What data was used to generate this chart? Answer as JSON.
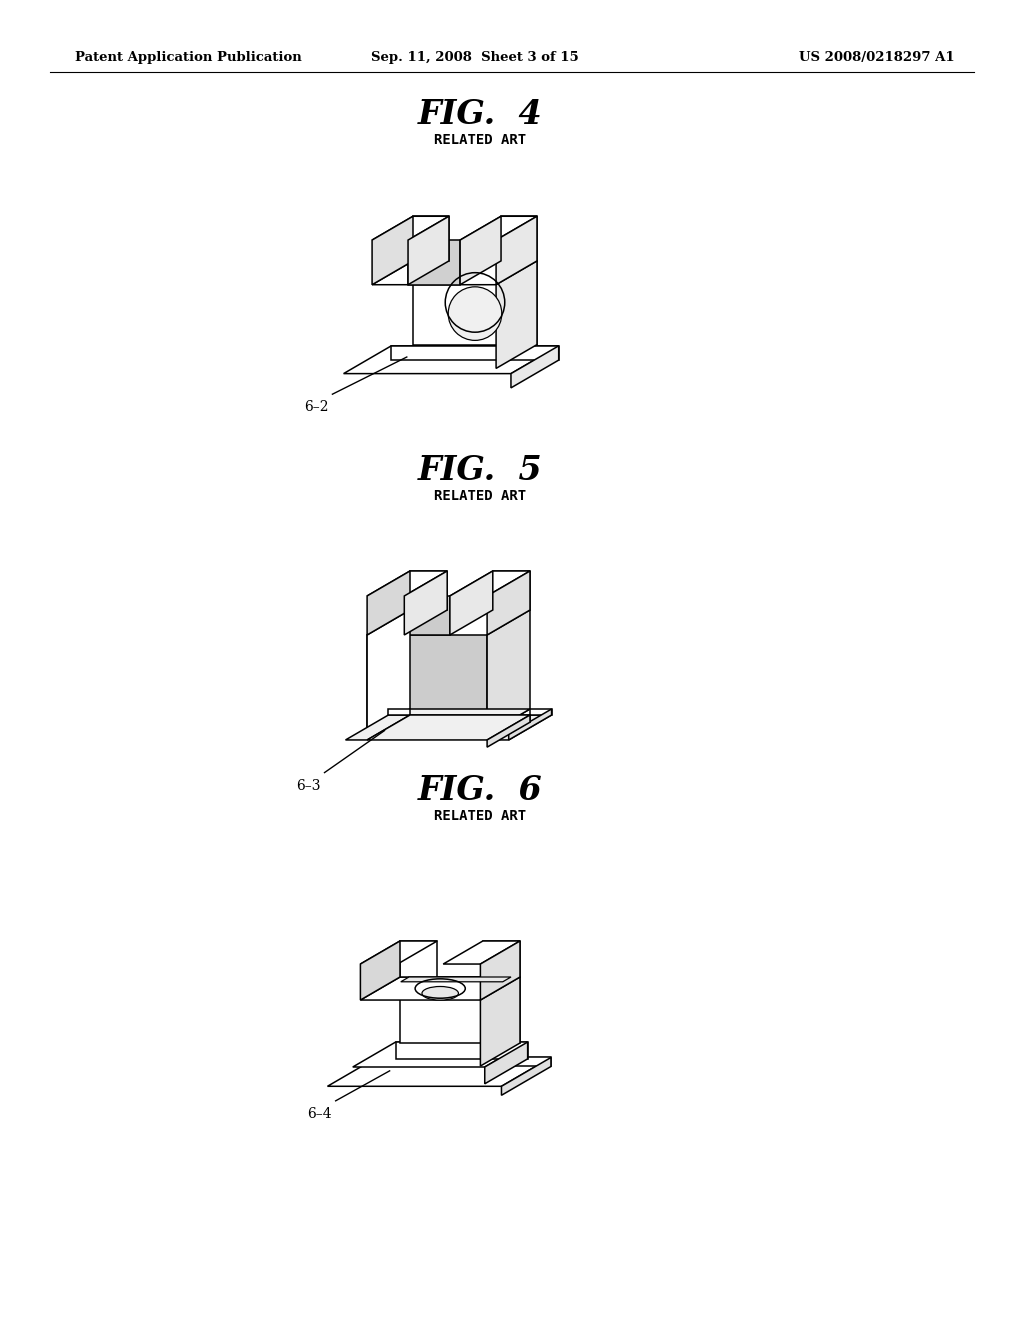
{
  "bg_color": "#ffffff",
  "header_left": "Patent Application Publication",
  "header_center": "Sep. 11, 2008  Sheet 3 of 15",
  "header_right": "US 2008/0218297 A1",
  "fig4_title": "FIG.  4",
  "fig5_title": "FIG.  5",
  "fig6_title": "FIG.  6",
  "related_art": "RELATED ART",
  "label_6_2": "6–2",
  "label_6_3": "6–3",
  "label_6_4": "6–4",
  "line_color": "#000000",
  "lw": 1.0
}
